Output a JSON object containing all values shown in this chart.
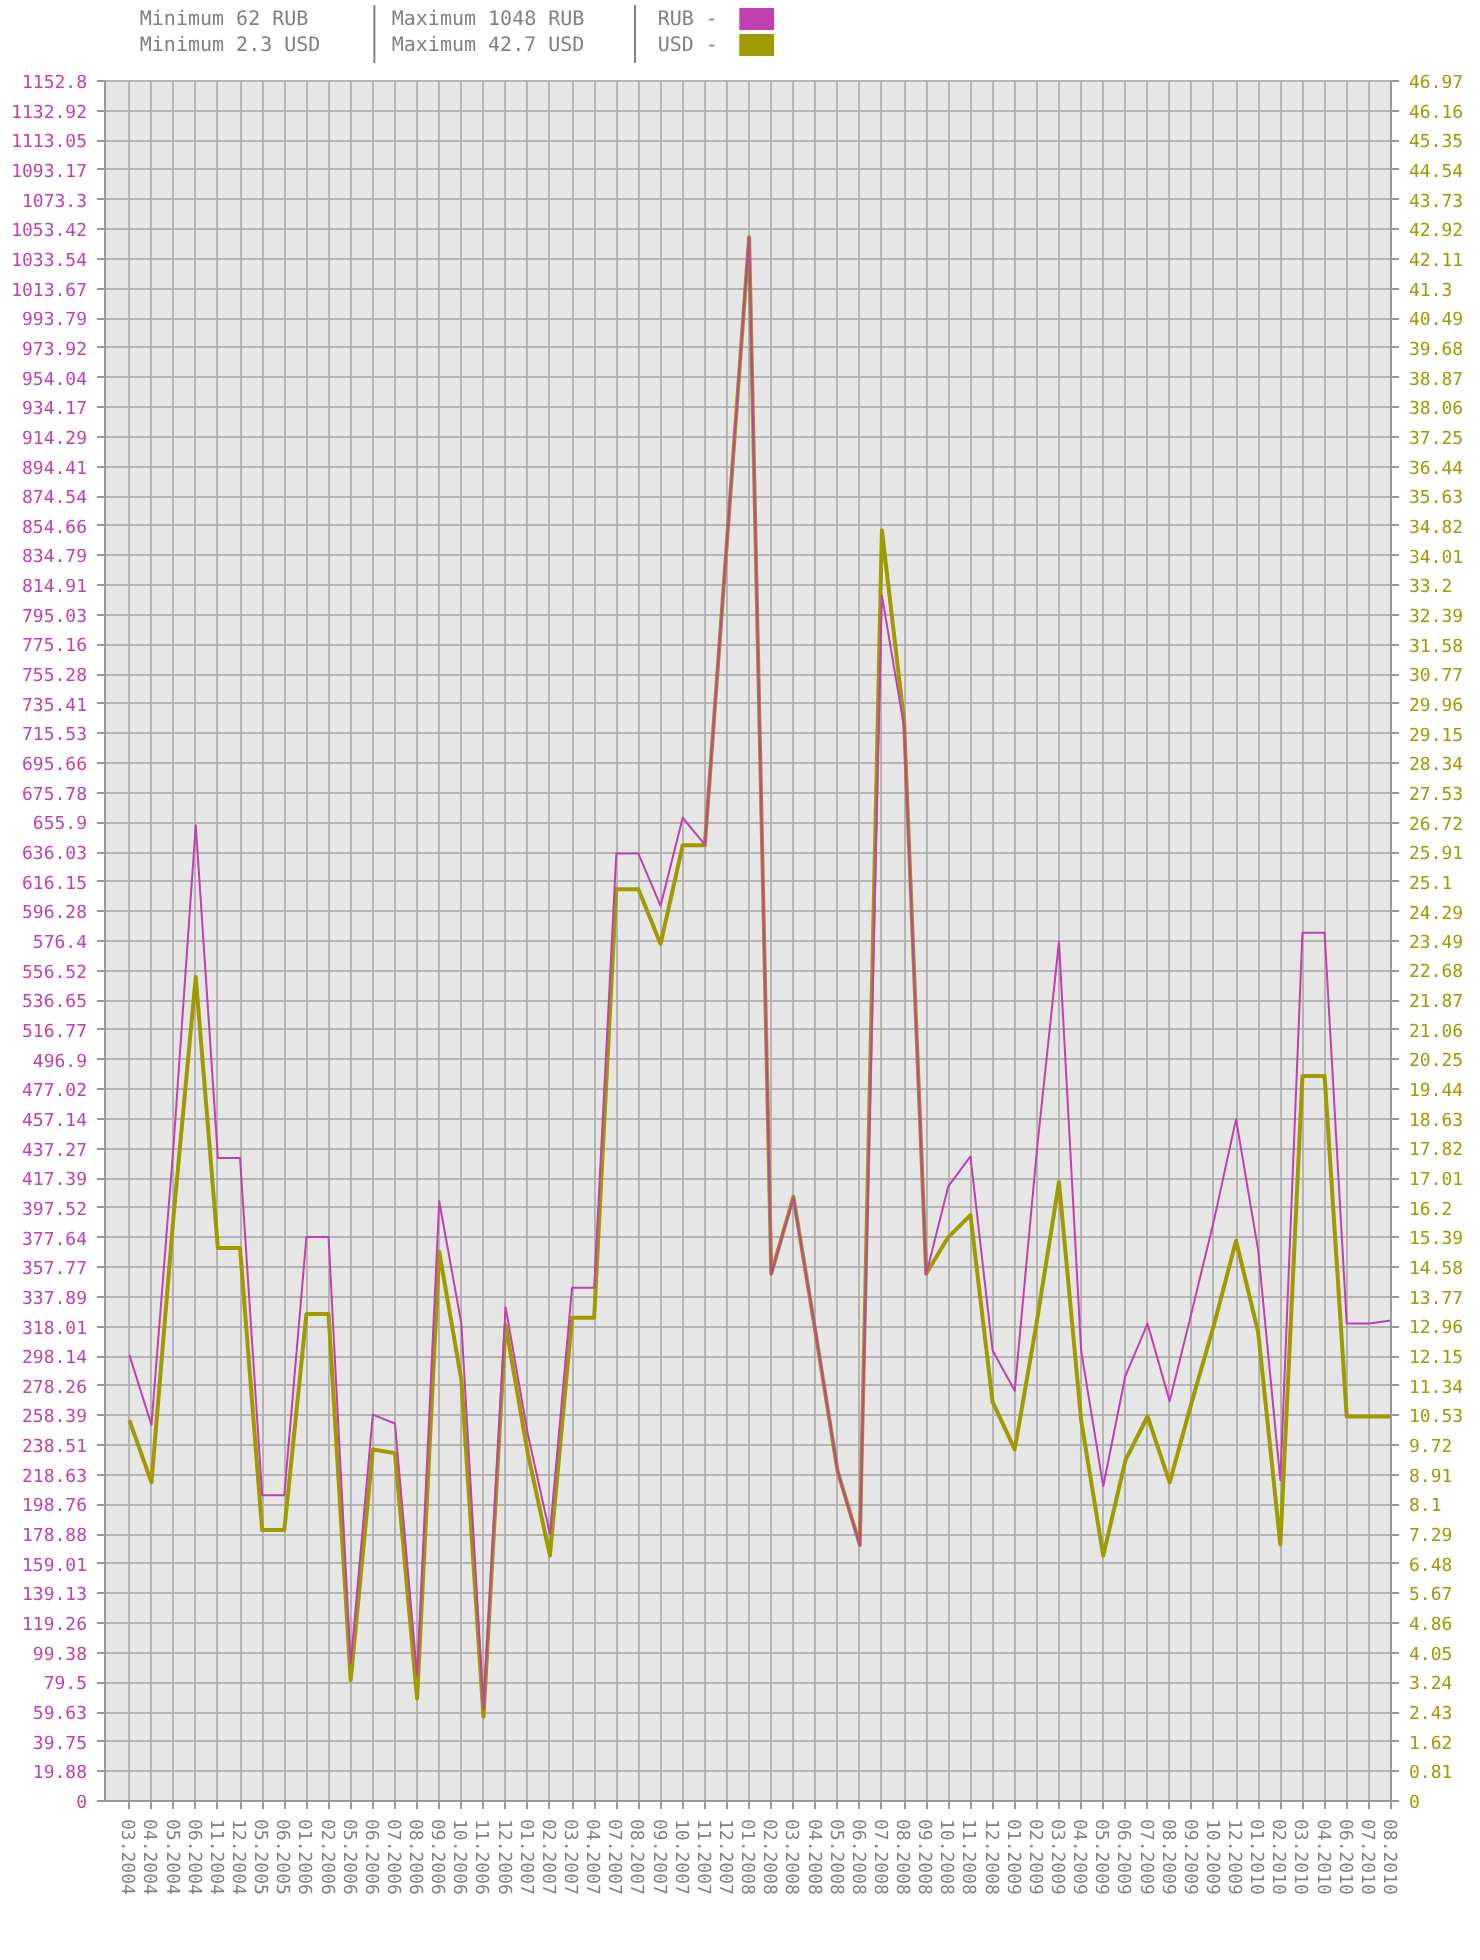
{
  "chart_data": {
    "type": "line",
    "annotations": [
      "Minimum 62 RUB",
      "Minimum 2.3 USD",
      "Maximum 1048 RUB",
      "Maximum 42.7 USD"
    ],
    "categories": [
      "03.2004",
      "04.2004",
      "05.2004",
      "06.2004",
      "11.2004",
      "12.2004",
      "05.2005",
      "06.2005",
      "01.2006",
      "02.2006",
      "05.2006",
      "06.2006",
      "07.2006",
      "08.2006",
      "09.2006",
      "10.2006",
      "11.2006",
      "12.2006",
      "01.2007",
      "02.2007",
      "03.2007",
      "04.2007",
      "07.2007",
      "08.2007",
      "09.2007",
      "10.2007",
      "11.2007",
      "12.2007",
      "01.2008",
      "02.2008",
      "03.2008",
      "04.2008",
      "05.2008",
      "06.2008",
      "07.2008",
      "08.2008",
      "09.2008",
      "10.2008",
      "11.2008",
      "12.2008",
      "01.2009",
      "02.2009",
      "03.2009",
      "04.2009",
      "05.2009",
      "06.2009",
      "07.2009",
      "08.2009",
      "09.2009",
      "10.2009",
      "12.2009",
      "01.2010",
      "02.2010",
      "03.2010",
      "04.2010",
      "06.2010",
      "07.2010",
      "08.2010"
    ],
    "series": [
      {
        "name": "RUB -",
        "color": "#c040b0",
        "values": [
          299,
          252,
          440,
          654,
          431,
          431,
          205,
          205,
          378,
          378,
          92,
          259,
          253,
          84,
          402,
          320,
          62,
          331,
          246,
          179,
          344,
          344,
          635,
          635,
          600,
          659,
          641,
          845,
          1048,
          353,
          404,
          315,
          221,
          171,
          808,
          720,
          353,
          412,
          432,
          302,
          275,
          436,
          576,
          302,
          211,
          285,
          320,
          268,
          328,
          389,
          457,
          369,
          215,
          582,
          582,
          320,
          320,
          322
        ]
      },
      {
        "name": "USD -",
        "color": "#a09a00",
        "axis": "y2",
        "values": [
          10.4,
          8.7,
          16.0,
          22.5,
          15.1,
          15.1,
          7.4,
          7.4,
          13.3,
          13.3,
          3.3,
          9.6,
          9.5,
          2.8,
          15.0,
          11.5,
          2.3,
          13.0,
          9.5,
          6.7,
          13.2,
          13.2,
          24.9,
          24.9,
          23.4,
          26.1,
          26.1,
          34.4,
          42.7,
          14.4,
          16.5,
          12.8,
          9.0,
          7.0,
          34.7,
          29.5,
          14.4,
          15.4,
          16.0,
          10.9,
          9.6,
          13.1,
          16.9,
          10.4,
          6.7,
          9.3,
          10.5,
          8.7,
          10.9,
          13.0,
          15.3,
          12.8,
          7.0,
          19.8,
          19.8,
          10.5,
          10.5,
          10.5
        ]
      }
    ],
    "ylim": [
      0,
      1152.8
    ],
    "yticks": [
      0,
      19.88,
      39.75,
      59.63,
      79.5,
      99.38,
      119.26,
      139.13,
      159.01,
      178.88,
      198.76,
      218.63,
      238.51,
      258.39,
      278.26,
      298.14,
      318.01,
      337.89,
      357.77,
      377.64,
      397.52,
      417.39,
      437.27,
      457.14,
      477.02,
      496.9,
      516.77,
      536.65,
      556.52,
      576.4,
      596.28,
      616.15,
      636.03,
      655.9,
      675.78,
      695.66,
      715.53,
      735.41,
      755.28,
      775.16,
      795.03,
      814.91,
      834.79,
      854.66,
      874.54,
      894.41,
      914.29,
      934.17,
      954.04,
      973.92,
      993.79,
      1013.67,
      1033.54,
      1053.42,
      1073.3,
      1093.17,
      1113.05,
      1132.92,
      1152.8
    ],
    "y2lim": [
      0,
      46.97
    ],
    "y2ticks": [
      0,
      0.81,
      1.62,
      2.43,
      3.24,
      4.05,
      4.86,
      5.67,
      6.48,
      7.29,
      8.1,
      8.91,
      9.72,
      10.53,
      11.34,
      12.15,
      12.96,
      13.77,
      14.58,
      15.39,
      16.2,
      17.01,
      17.82,
      18.63,
      19.44,
      20.25,
      21.06,
      21.87,
      22.68,
      23.49,
      24.29,
      25.1,
      25.91,
      26.72,
      27.53,
      28.34,
      29.15,
      29.96,
      30.77,
      31.58,
      32.39,
      33.2,
      34.01,
      34.82,
      35.63,
      36.44,
      37.25,
      38.06,
      38.87,
      39.68,
      40.49,
      41.3,
      42.11,
      42.92,
      43.73,
      44.54,
      45.35,
      46.16,
      46.97
    ],
    "grid": true,
    "legend": "top"
  }
}
